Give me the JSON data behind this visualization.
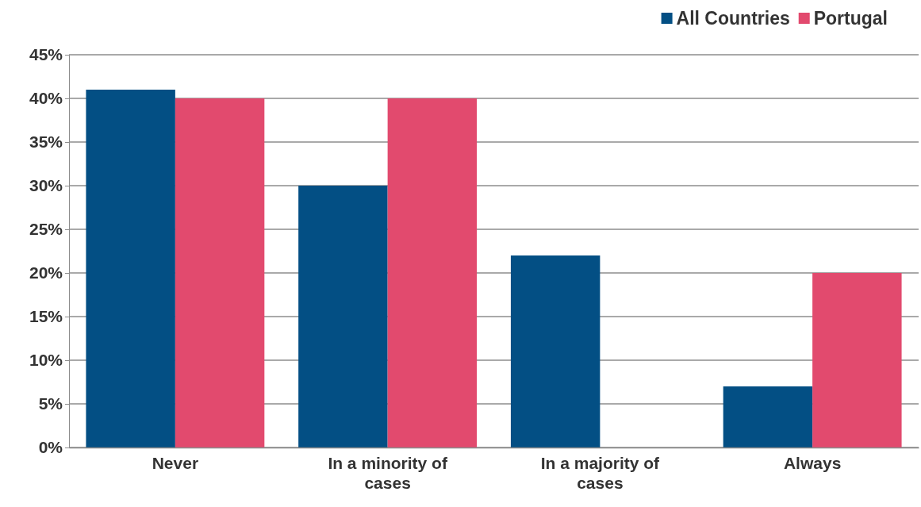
{
  "chart_data": {
    "type": "bar",
    "categories": [
      "Never",
      "In a minority of cases",
      "In a majority of cases",
      "Always"
    ],
    "series": [
      {
        "name": "All Countries",
        "color": "#034f84",
        "values": [
          41,
          30,
          22,
          7
        ]
      },
      {
        "name": "Portugal",
        "color": "#e24a6e",
        "values": [
          40,
          40,
          0,
          20
        ]
      }
    ],
    "ylim": [
      0,
      45
    ],
    "yticks": [
      {
        "value": 0,
        "label": "0%"
      },
      {
        "value": 5,
        "label": "5%"
      },
      {
        "value": 10,
        "label": "10%"
      },
      {
        "value": 15,
        "label": "15%"
      },
      {
        "value": 20,
        "label": "20%"
      },
      {
        "value": 25,
        "label": "25%"
      },
      {
        "value": 30,
        "label": "30%"
      },
      {
        "value": 35,
        "label": "35%"
      },
      {
        "value": 40,
        "label": "40%"
      },
      {
        "value": 45,
        "label": "45%"
      }
    ],
    "grid": "y",
    "legend": "top right"
  }
}
